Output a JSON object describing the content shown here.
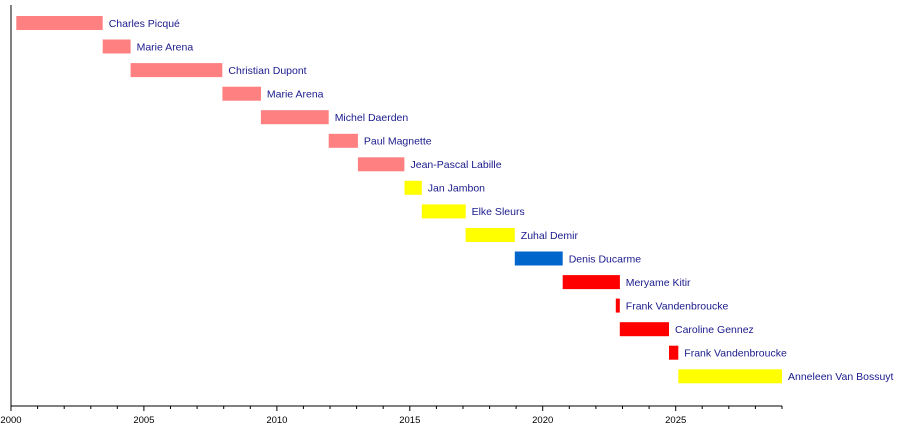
{
  "chart_data": {
    "type": "timeline",
    "title": "",
    "xlabel": "",
    "ylabel": "",
    "xlim": [
      2000,
      2029
    ],
    "x_ticks": [
      "2000",
      "2005",
      "2010",
      "2015",
      "2020",
      "2025"
    ],
    "grid": false,
    "legend": "none",
    "bars": [
      {
        "name": "Charles Picqué",
        "start": 2000.2,
        "end": 2003.45,
        "color": "#ff8080"
      },
      {
        "name": "Marie Arena",
        "start": 2003.45,
        "end": 2004.5,
        "color": "#ff8080"
      },
      {
        "name": "Christian Dupont",
        "start": 2004.5,
        "end": 2007.95,
        "color": "#ff8080"
      },
      {
        "name": "Marie Arena",
        "start": 2007.95,
        "end": 2009.4,
        "color": "#ff8080"
      },
      {
        "name": "Michel Daerden",
        "start": 2009.4,
        "end": 2011.95,
        "color": "#ff8080"
      },
      {
        "name": "Paul Magnette",
        "start": 2011.95,
        "end": 2013.05,
        "color": "#ff8080"
      },
      {
        "name": "Jean-Pascal Labille",
        "start": 2013.05,
        "end": 2014.8,
        "color": "#ff8080"
      },
      {
        "name": "Jan Jambon",
        "start": 2014.8,
        "end": 2015.45,
        "color": "#ffff00"
      },
      {
        "name": "Elke Sleurs",
        "start": 2015.45,
        "end": 2017.1,
        "color": "#ffff00"
      },
      {
        "name": "Zuhal Demir",
        "start": 2017.1,
        "end": 2018.95,
        "color": "#ffff00"
      },
      {
        "name": "Denis Ducarme",
        "start": 2018.95,
        "end": 2020.75,
        "color": "#0066cc"
      },
      {
        "name": "Meryame Kitir",
        "start": 2020.75,
        "end": 2022.9,
        "color": "#ff0000"
      },
      {
        "name": "Frank Vandenbroucke",
        "start": 2022.75,
        "end": 2022.9,
        "color": "#ff0000"
      },
      {
        "name": "Caroline Gennez",
        "start": 2022.9,
        "end": 2024.75,
        "color": "#ff0000"
      },
      {
        "name": "Frank Vandenbroucke",
        "start": 2024.75,
        "end": 2025.1,
        "color": "#ff0000"
      },
      {
        "name": "Anneleen Van Bossuyt",
        "start": 2025.1,
        "end": 2029.0,
        "color": "#ffff00"
      }
    ]
  }
}
